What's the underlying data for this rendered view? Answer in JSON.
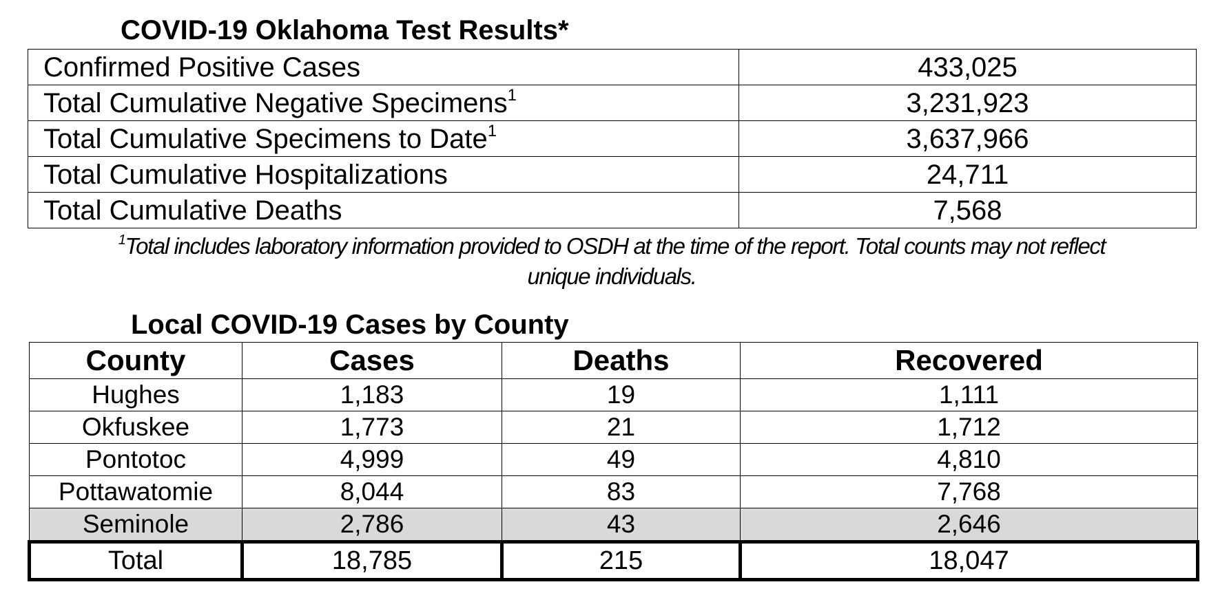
{
  "test_results": {
    "title": "COVID-19 Oklahoma Test Results*",
    "rows": [
      {
        "label": "Confirmed Positive Cases",
        "sup": "",
        "value": "433,025"
      },
      {
        "label": "Total Cumulative Negative Specimens",
        "sup": "1",
        "value": "3,231,923"
      },
      {
        "label": "Total Cumulative Specimens to Date",
        "sup": "1",
        "value": "3,637,966"
      },
      {
        "label": "Total Cumulative Hospitalizations",
        "sup": "",
        "value": "24,711"
      },
      {
        "label": "Total Cumulative Deaths",
        "sup": "",
        "value": "7,568"
      }
    ],
    "footnote_marker": "1",
    "footnote_line1": "Total includes laboratory information provided to OSDH at the time of the report. Total counts may not reflect",
    "footnote_line2": "unique individuals."
  },
  "county_cases": {
    "title": "Local COVID-19 Cases by County",
    "headers": [
      "County",
      "Cases",
      "Deaths",
      "Recovered"
    ],
    "rows": [
      [
        "Hughes",
        "1,183",
        "19",
        "1,111"
      ],
      [
        "Okfuskee",
        "1,773",
        "21",
        "1,712"
      ],
      [
        "Pontotoc",
        "4,999",
        "49",
        "4,810"
      ],
      [
        "Pottawatomie",
        "8,044",
        "83",
        "7,768"
      ],
      [
        "Seminole",
        "2,786",
        "43",
        "2,646"
      ]
    ],
    "total": [
      "Total",
      "18,785",
      "215",
      "18,047"
    ],
    "highlight_color": "#d9d9d9"
  }
}
